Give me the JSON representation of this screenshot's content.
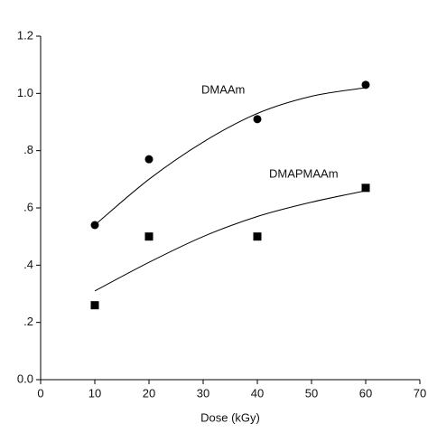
{
  "chart_data": {
    "type": "scatter",
    "x_label": "Dose (kGy)",
    "xlim": [
      0,
      70
    ],
    "xticks": [
      0,
      10,
      20,
      30,
      40,
      50,
      60,
      70
    ],
    "ylim": [
      0,
      1.2
    ],
    "yticks": [
      {
        "value": 0,
        "label": "0.0"
      },
      {
        "value": 0.2,
        "label": ".2"
      },
      {
        "value": 0.4,
        "label": ".4"
      },
      {
        "value": 0.6,
        "label": ".6"
      },
      {
        "value": 0.8,
        "label": ".8"
      },
      {
        "value": 1.0,
        "label": "1.0"
      },
      {
        "value": 1.2,
        "label": "1.2"
      }
    ],
    "x": [
      10,
      20,
      40,
      60
    ],
    "fit_x": [
      10,
      20,
      30,
      40,
      50,
      60
    ],
    "series": [
      {
        "name": "DMAAm",
        "color": "#000000",
        "marker": "circle",
        "values": [
          0.54,
          0.77,
          0.91,
          1.03
        ],
        "fit_values": [
          0.54,
          0.7,
          0.83,
          0.93,
          0.99,
          1.02
        ]
      },
      {
        "name": "DMAPMAAm",
        "color": "#000000",
        "marker": "square",
        "values": [
          0.26,
          0.5,
          0.5,
          0.67
        ],
        "fit_values": [
          0.31,
          0.41,
          0.5,
          0.57,
          0.62,
          0.66
        ]
      }
    ]
  }
}
